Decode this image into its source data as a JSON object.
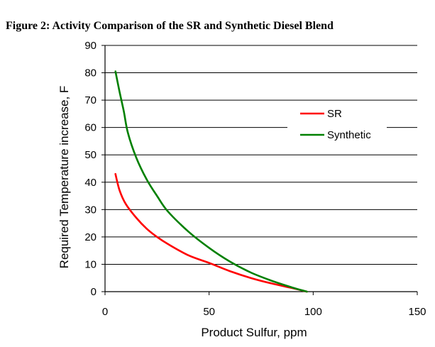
{
  "figure": {
    "title": "Figure 2: Activity Comparison of the SR and Synthetic Diesel Blend"
  },
  "chart_data": {
    "type": "line",
    "xlabel": "Product Sulfur, ppm",
    "ylabel": "Required Temperature increase, F",
    "xlim": [
      0,
      150
    ],
    "ylim": [
      0,
      90
    ],
    "x_ticks": [
      0,
      50,
      100,
      150
    ],
    "y_ticks": [
      0,
      10,
      20,
      30,
      40,
      50,
      60,
      70,
      80,
      90
    ],
    "grid": "horizontal",
    "legend_position": "right",
    "series": [
      {
        "name": "SR",
        "color": "#ff0000",
        "x": [
          5,
          7,
          10,
          15,
          20,
          25,
          30,
          40,
          50,
          60,
          70,
          80,
          90,
          97
        ],
        "y": [
          43,
          37,
          32,
          27,
          23,
          20,
          17.5,
          13.3,
          10.5,
          7.5,
          5,
          3,
          1.3,
          0
        ]
      },
      {
        "name": "Synthetic",
        "color": "#008000",
        "x": [
          5,
          7,
          9,
          11,
          15,
          20,
          25,
          30,
          40,
          50,
          60,
          70,
          80,
          90,
          97
        ],
        "y": [
          80.5,
          73,
          66,
          58,
          49,
          41,
          35,
          29.5,
          22,
          16,
          11,
          7,
          4,
          1.5,
          0
        ]
      }
    ]
  }
}
